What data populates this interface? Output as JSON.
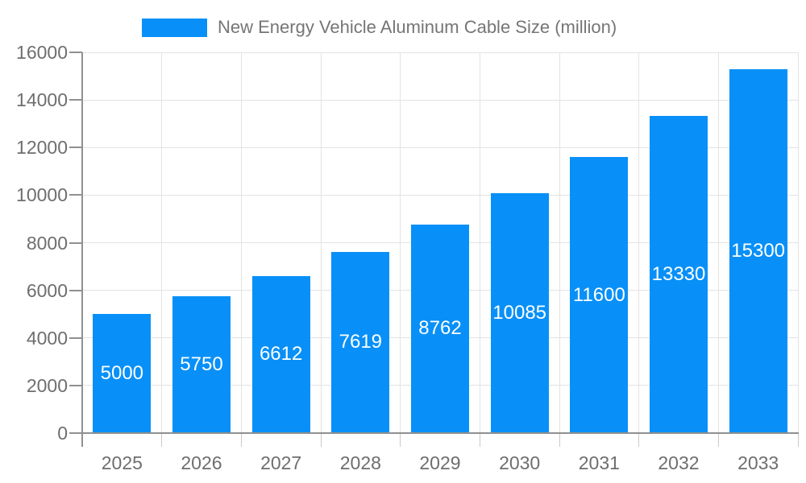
{
  "chart_data": {
    "type": "bar",
    "title": "New Energy Vehicle Aluminum Cable Size (million)",
    "legend": {
      "label": "New Energy Vehicle Aluminum Cable Size (million)",
      "position": "top-center"
    },
    "categories": [
      "2025",
      "2026",
      "2027",
      "2028",
      "2029",
      "2030",
      "2031",
      "2032",
      "2033"
    ],
    "series": [
      {
        "name": "New Energy Vehicle Aluminum Cable Size (million)",
        "values": [
          5000,
          5750,
          6612,
          7619,
          8762,
          10085,
          11600,
          13330,
          15300
        ]
      }
    ],
    "xlabel": "",
    "ylabel": "",
    "ylim": [
      0,
      16000
    ],
    "yticks": [
      0,
      2000,
      4000,
      6000,
      8000,
      10000,
      12000,
      14000,
      16000
    ],
    "grid": true,
    "value_labels_inside_bars": true,
    "colors": {
      "bar": "#0890F8",
      "value_label": "#FFFFFF",
      "axis_text": "#6E6E6E",
      "legend_text": "#757575",
      "axis_line": "#909090",
      "gridline": "#E3E3E3",
      "boundary_tick": "#C9C9C9",
      "background": "#FFFFFF"
    }
  }
}
